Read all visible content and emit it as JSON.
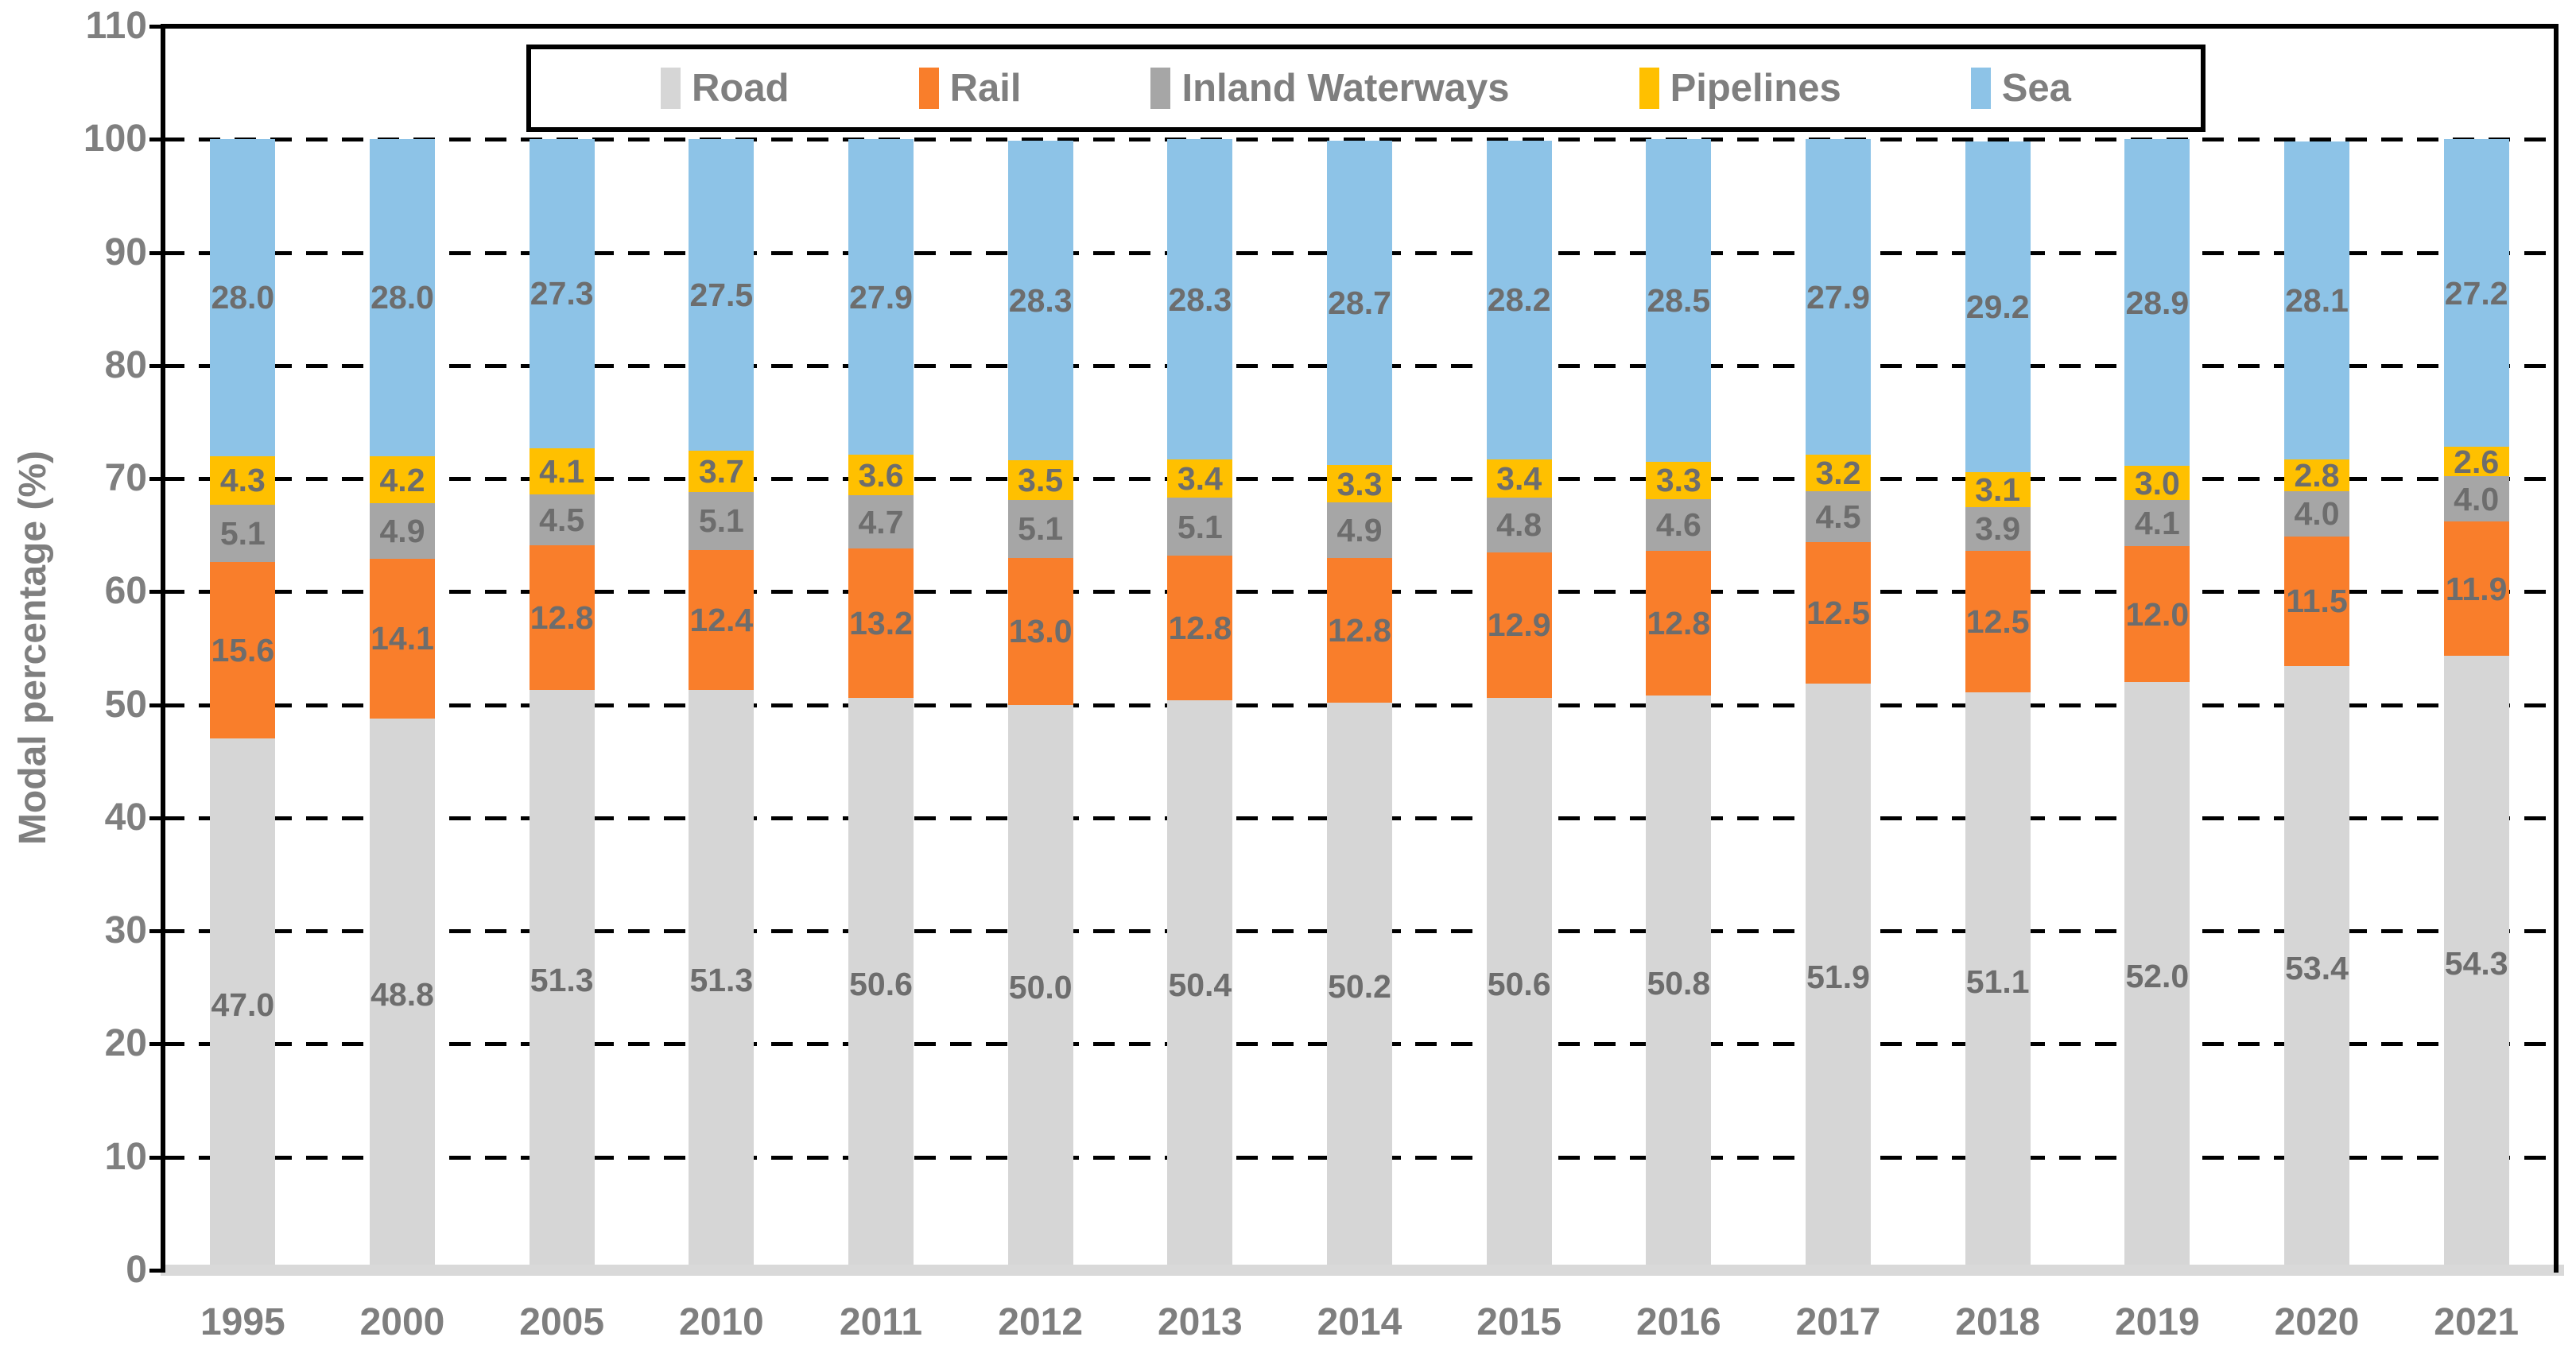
{
  "chart_data": {
    "type": "bar",
    "stacked": true,
    "title": "",
    "xlabel": "",
    "ylabel": "Modal percentage (%)",
    "ylim": [
      0,
      110
    ],
    "ytick_step": 10,
    "yticks": [
      0,
      10,
      20,
      30,
      40,
      50,
      60,
      70,
      80,
      90,
      100,
      110
    ],
    "grid": "dashed horizontal black, behind bars",
    "legend_position": "top center, boxed",
    "data_labels": "every segment, one decimal",
    "categories": [
      "1995",
      "2000",
      "2005",
      "2010",
      "2011",
      "2012",
      "2013",
      "2014",
      "2015",
      "2016",
      "2017",
      "2018",
      "2019",
      "2020",
      "2021"
    ],
    "series": [
      {
        "name": "Road",
        "color": "#d6d6d6",
        "values": [
          47.0,
          48.8,
          51.3,
          51.3,
          50.6,
          50.0,
          50.4,
          50.2,
          50.6,
          50.8,
          51.9,
          51.1,
          52.0,
          53.4,
          54.3
        ]
      },
      {
        "name": "Rail",
        "color": "#f97e2b",
        "values": [
          15.6,
          14.1,
          12.8,
          12.4,
          13.2,
          13.0,
          12.8,
          12.8,
          12.9,
          12.8,
          12.5,
          12.5,
          12.0,
          11.5,
          11.9
        ]
      },
      {
        "name": "Inland Waterways",
        "color": "#a6a6a6",
        "values": [
          5.1,
          4.9,
          4.5,
          5.1,
          4.7,
          5.1,
          5.1,
          4.9,
          4.8,
          4.6,
          4.5,
          3.9,
          4.1,
          4.0,
          4.0
        ]
      },
      {
        "name": "Pipelines",
        "color": "#ffc000",
        "values": [
          4.3,
          4.2,
          4.1,
          3.7,
          3.6,
          3.5,
          3.4,
          3.3,
          3.4,
          3.3,
          3.2,
          3.1,
          3.0,
          2.8,
          2.6
        ]
      },
      {
        "name": "Sea",
        "color": "#8dc3e7",
        "values": [
          28.0,
          28.0,
          27.3,
          27.5,
          27.9,
          28.3,
          28.3,
          28.7,
          28.2,
          28.5,
          27.9,
          29.2,
          28.9,
          28.1,
          27.2
        ]
      }
    ],
    "colors": {
      "grid": "#000000",
      "axis_border": "#000000",
      "x_axis_line": "#d9d9d9",
      "axis_text": "#7f7f7f",
      "data_label_text": "#6d6d6d",
      "background": "#ffffff"
    }
  }
}
